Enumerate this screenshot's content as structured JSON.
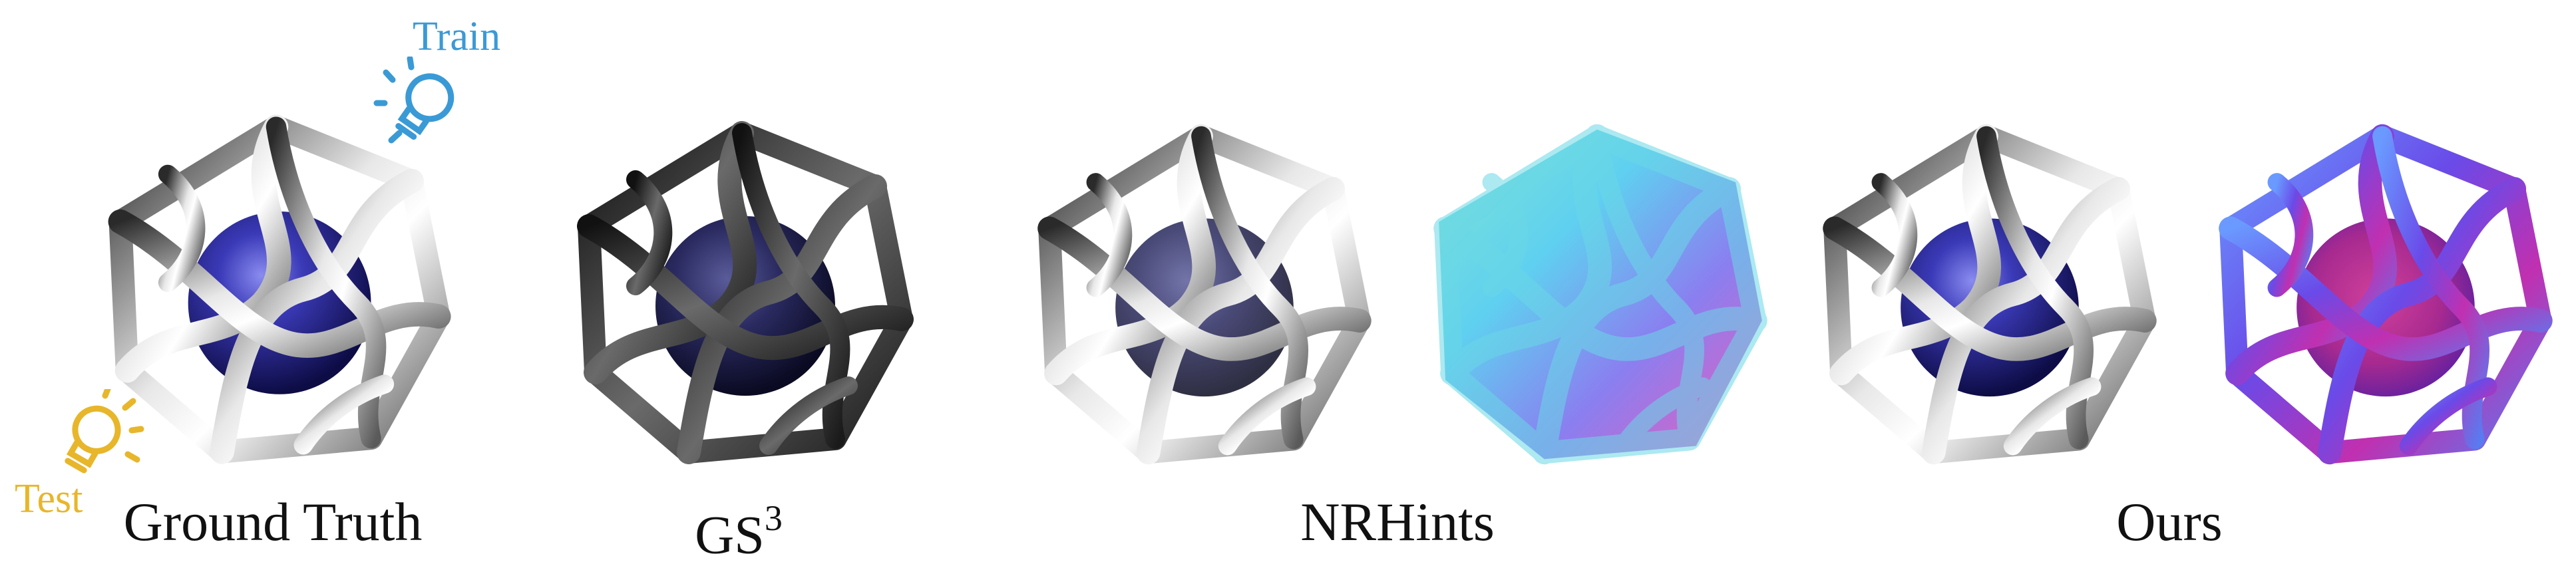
{
  "light_labels": {
    "train": "Train",
    "test": "Test"
  },
  "captions": {
    "ground_truth": "Ground Truth",
    "gs3_base": "GS",
    "gs3_sup": "3",
    "nrhints": "NRHints",
    "ours": "Ours"
  },
  "icons": {
    "train_light": "lightbulb-icon",
    "test_light": "lightbulb-icon"
  },
  "colors": {
    "train_light": "#3a9ad6",
    "test_light": "#e8b62a",
    "caption_text": "#111111"
  }
}
